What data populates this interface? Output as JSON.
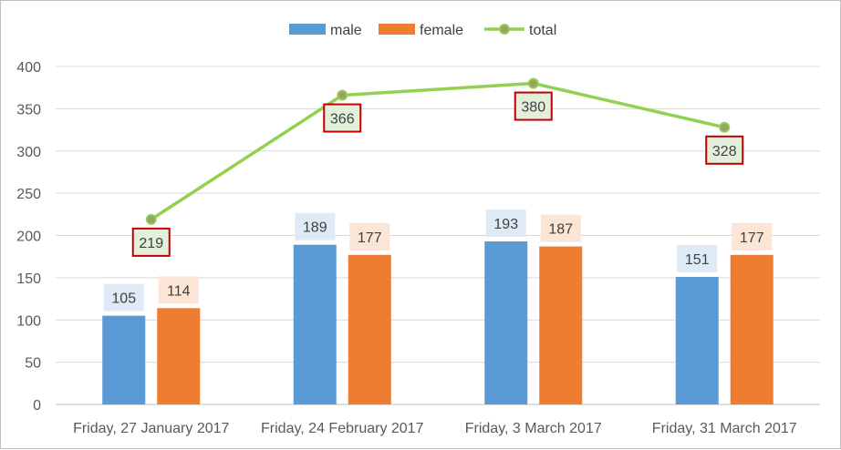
{
  "chart_data": {
    "type": "bar",
    "categories": [
      "Friday, 27 January 2017",
      "Friday, 24 February 2017",
      "Friday, 3 March 2017",
      "Friday, 31 March 2017"
    ],
    "series": [
      {
        "name": "male",
        "type": "bar",
        "color": "#5b9bd5",
        "label_bg": "#deebf7",
        "values": [
          105,
          189,
          193,
          151
        ]
      },
      {
        "name": "female",
        "type": "bar",
        "color": "#ed7d31",
        "label_bg": "#fbe5d6",
        "values": [
          114,
          177,
          187,
          177
        ]
      },
      {
        "name": "total",
        "type": "line",
        "color": "#92d050",
        "marker_color": "#9aa06a",
        "label_bg": "#e2efda",
        "label_border": "#c00000",
        "values": [
          219,
          366,
          380,
          328
        ]
      }
    ],
    "yticks": [
      "0",
      "50",
      "100",
      "150",
      "200",
      "250",
      "300",
      "350",
      "400"
    ],
    "ylim": [
      0,
      400
    ],
    "grid": true,
    "legend_position": "top"
  }
}
